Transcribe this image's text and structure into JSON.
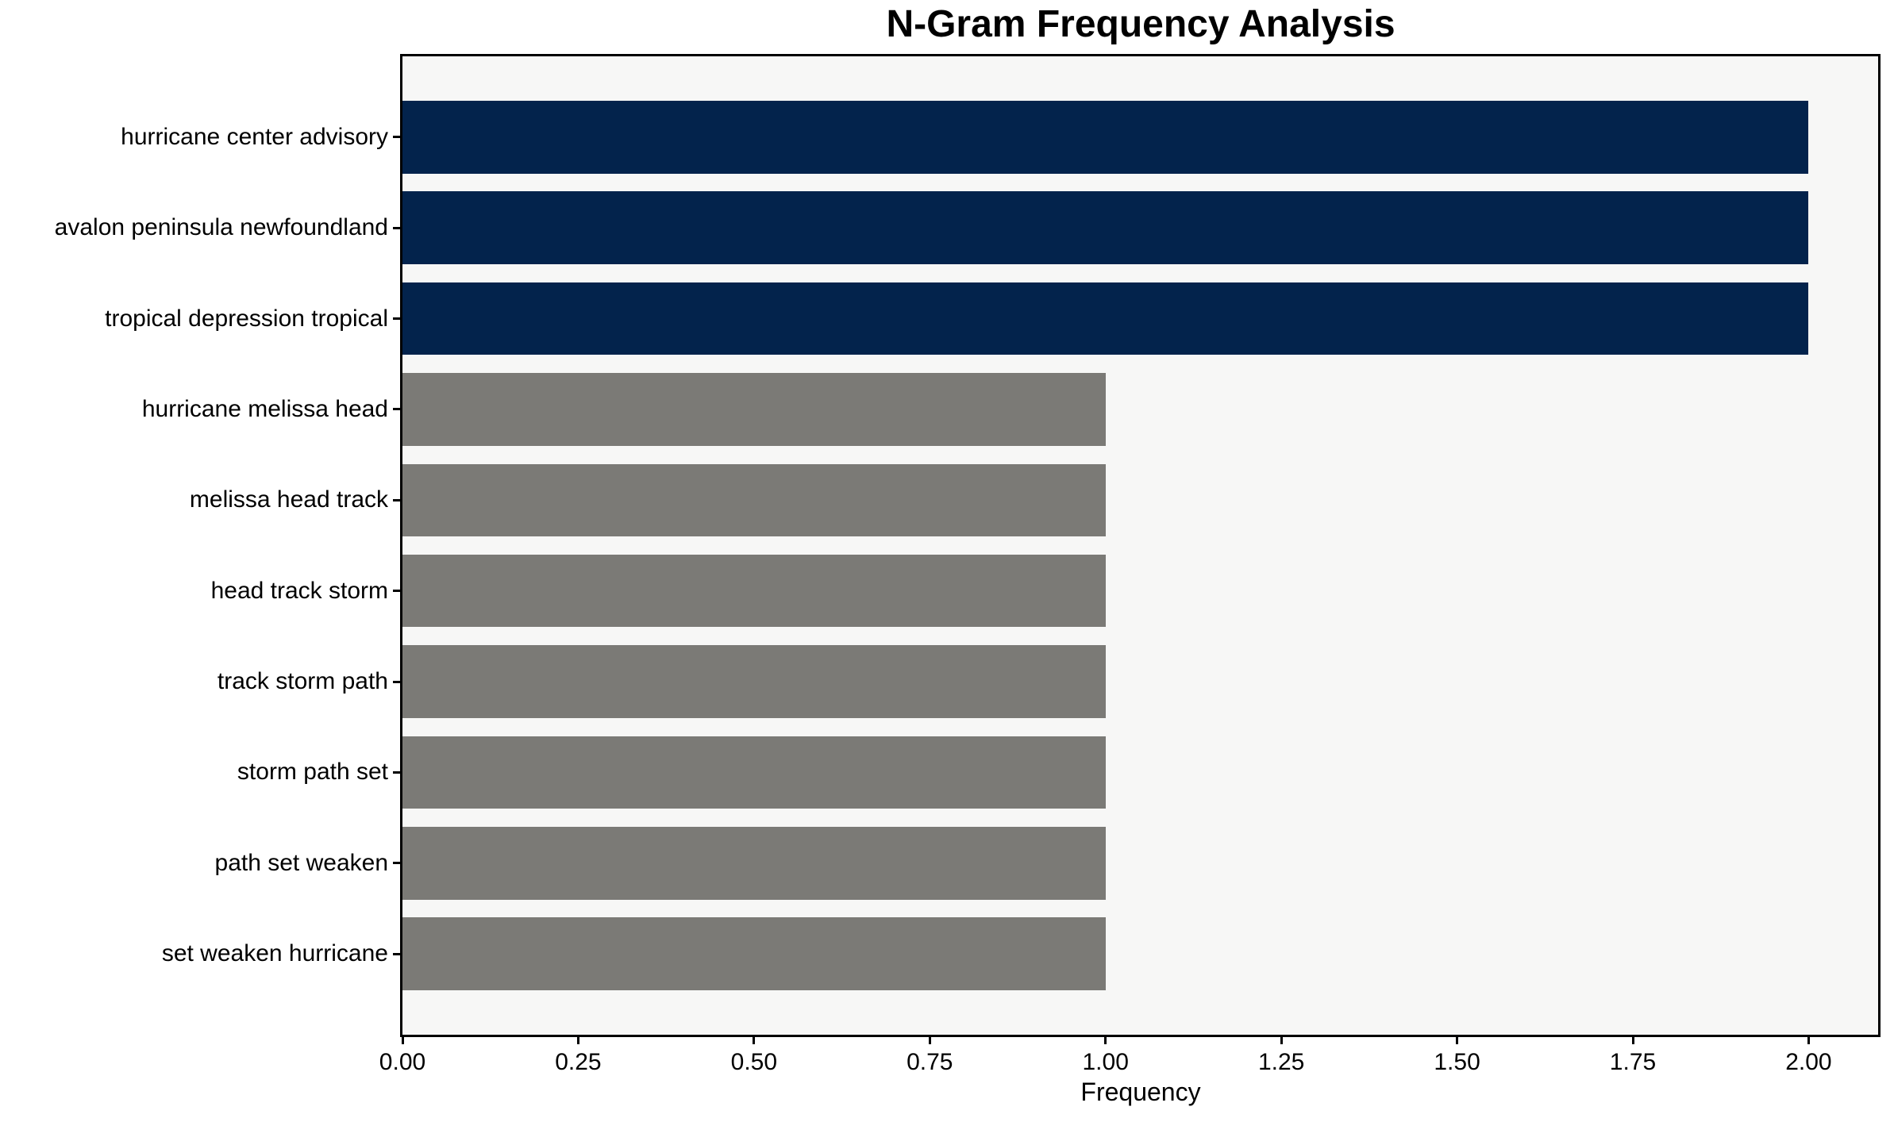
{
  "chart_data": {
    "type": "bar",
    "orientation": "horizontal",
    "title": "N-Gram Frequency Analysis",
    "xlabel": "Frequency",
    "ylabel": "",
    "categories": [
      "hurricane center advisory",
      "avalon peninsula newfoundland",
      "tropical depression tropical",
      "hurricane melissa head",
      "melissa head track",
      "head track storm",
      "track storm path",
      "storm path set",
      "path set weaken",
      "set weaken hurricane"
    ],
    "values": [
      2,
      2,
      2,
      1,
      1,
      1,
      1,
      1,
      1,
      1
    ],
    "bar_colors": [
      "#03234c",
      "#03234c",
      "#03234c",
      "#7b7a76",
      "#7b7a76",
      "#7b7a76",
      "#7b7a76",
      "#7b7a76",
      "#7b7a76",
      "#7b7a76"
    ],
    "xlim": [
      0,
      2.1
    ],
    "xtick_values": [
      0,
      0.25,
      0.5,
      0.75,
      1.0,
      1.25,
      1.5,
      1.75,
      2.0
    ],
    "xtick_labels": [
      "0.00",
      "0.25",
      "0.50",
      "0.75",
      "1.00",
      "1.25",
      "1.50",
      "1.75",
      "2.00"
    ],
    "grid": false,
    "legend": "none",
    "colors": {
      "highlight_bar": "#03234c",
      "default_bar": "#7b7a76",
      "plot_background": "#f7f7f6",
      "figure_background": "#ffffff",
      "axis_frame": "#000000",
      "text": "#000000"
    }
  }
}
